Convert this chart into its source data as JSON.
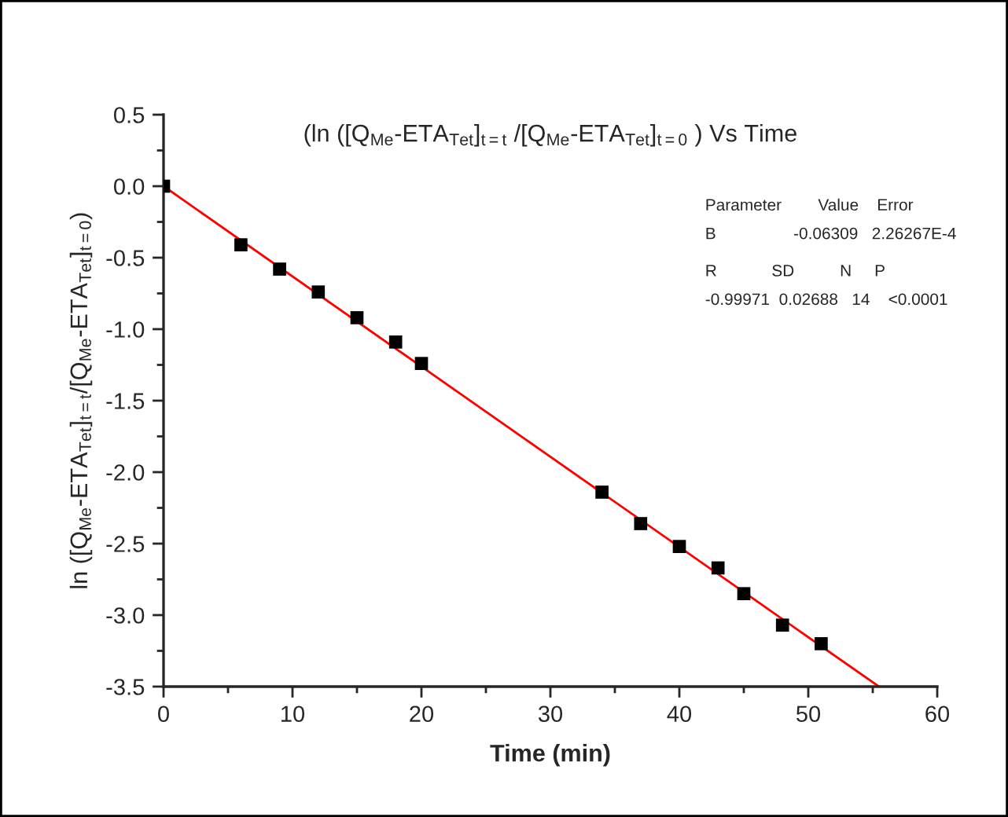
{
  "chart_data": {
    "type": "scatter",
    "title": "(ln ([Q$_{Me}$-ETA$_{Tet}$]$_{t=t}$ /[Q$_{Me}$-ETA$_{Tet}$]$_{t=0}$ ) Vs Time",
    "xlabel": "Time (min)",
    "ylabel": "ln ([Q$_{Me}$-ETA$_{Tet}$]$_{t=t}$/[Q$_{Me}$-ETA$_{Tet}$]$_{t=0}$)",
    "series": [
      {
        "color": "#000000",
        "marker": "square",
        "x": [
          0,
          6,
          9,
          12,
          15,
          18,
          20,
          34,
          37,
          40,
          43,
          45,
          48,
          51
        ],
        "values": [
          0,
          -0.41,
          -0.58,
          -0.74,
          -0.92,
          -1.09,
          -1.24,
          -2.14,
          -2.36,
          -2.52,
          -2.67,
          -2.85,
          -3.07,
          -3.2
        ]
      },
      {
        "type": "line",
        "color": "#ff0000",
        "marker": "none",
        "line_style": "solid",
        "x": [
          0,
          55.48
        ],
        "values": [
          0,
          -3.5
        ]
      }
    ],
    "xlim": [
      0,
      60
    ],
    "xticks": [
      0,
      10,
      20,
      30,
      40,
      50,
      60
    ],
    "ylim": [
      -3.5,
      0.5
    ],
    "yticks": [
      {
        "value": 0.5,
        "label": "0.5"
      },
      {
        "value": 0,
        "label": "0.0"
      },
      {
        "value": -0.5,
        "label": "-0.5"
      },
      {
        "value": -1,
        "label": "-1.0"
      },
      {
        "value": -1.5,
        "label": "-1.5"
      },
      {
        "value": -2,
        "label": "-2.0"
      },
      {
        "value": -2.5,
        "label": "-2.5"
      },
      {
        "value": -3,
        "label": "-3.0"
      },
      {
        "value": -3.5,
        "label": "-3.5"
      }
    ],
    "grid": false,
    "legend": false,
    "annotations": [
      "Parameter        Value    Error",
      "B                 -0.06309   2.26267E-4",
      "R            SD          N     P",
      "-0.99971  0.02688   14    <0.0001"
    ]
  }
}
